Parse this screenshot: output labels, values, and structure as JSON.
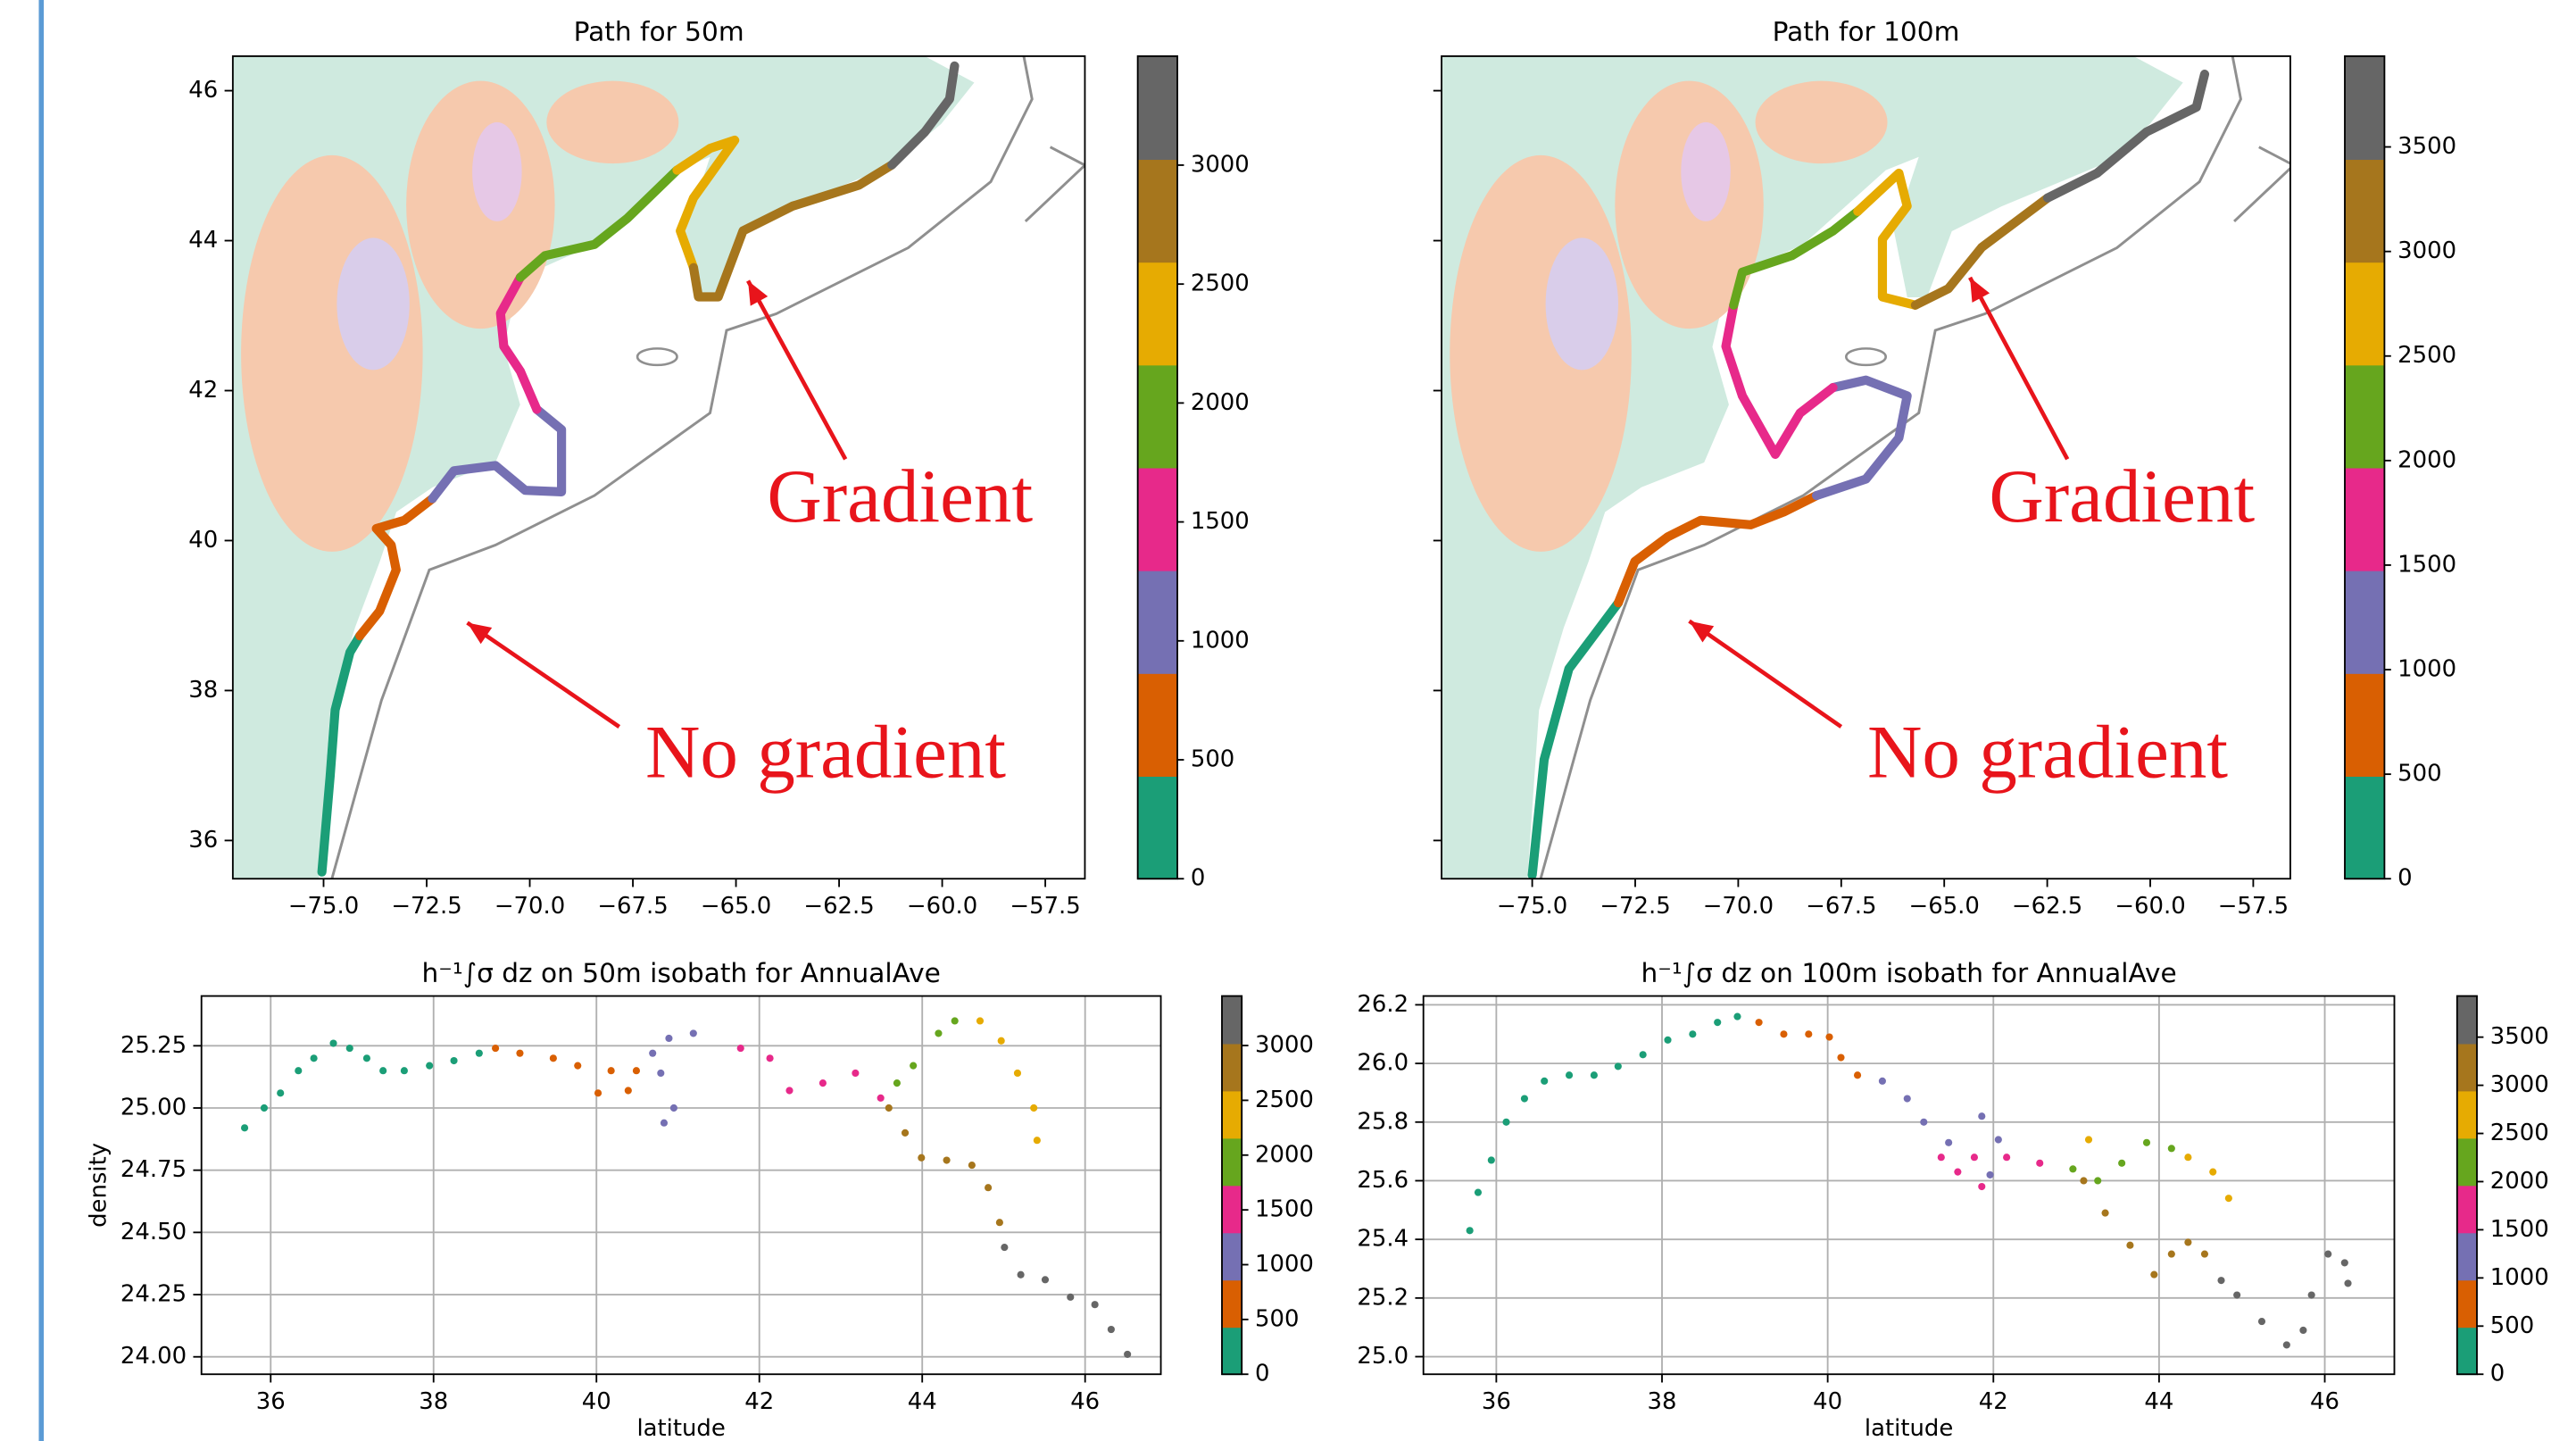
{
  "chart_data": [
    {
      "type": "line",
      "title": "Path for 50m",
      "xlim": [
        -77.2,
        -56.54
      ],
      "ylim": [
        35.49,
        46.46
      ],
      "xticks": [
        {
          "value": -75,
          "label": "−75.0"
        },
        {
          "value": -72.5,
          "label": "−72.5"
        },
        {
          "value": -70,
          "label": "−70.0"
        },
        {
          "value": -67.5,
          "label": "−67.5"
        },
        {
          "value": -65,
          "label": "−65.0"
        },
        {
          "value": -62.5,
          "label": "−62.5"
        },
        {
          "value": -60,
          "label": "−60.0"
        },
        {
          "value": -57.5,
          "label": "−57.5"
        }
      ],
      "yticks": [
        36,
        38,
        40,
        42,
        44,
        46
      ],
      "series": [
        {
          "color": "#1b9e77",
          "x": [
            -75.04,
            -74.84,
            -74.72,
            -74.36,
            -74.12
          ],
          "values": [
            35.58,
            36.86,
            37.74,
            38.51,
            38.73
          ]
        },
        {
          "color": "#d95f02",
          "x": [
            -74.12,
            -73.64,
            -73.24,
            -73.36,
            -73.72,
            -73.04,
            -72.36
          ],
          "values": [
            38.73,
            39.06,
            39.61,
            39.94,
            40.16,
            40.27,
            40.56
          ]
        },
        {
          "color": "#7570b3",
          "x": [
            -72.36,
            -71.84,
            -70.83,
            -70.11,
            -69.23,
            -69.23,
            -69.83
          ],
          "values": [
            40.56,
            40.93,
            41.0,
            40.67,
            40.65,
            41.48,
            41.75
          ]
        },
        {
          "color": "#e7298a",
          "x": [
            -69.83,
            -70.23,
            -70.63,
            -70.71,
            -70.23
          ],
          "values": [
            41.75,
            42.26,
            42.59,
            43.03,
            43.51
          ]
        },
        {
          "color": "#66a61e",
          "x": [
            -70.23,
            -69.63,
            -68.43,
            -67.63,
            -66.43
          ],
          "values": [
            43.51,
            43.8,
            43.95,
            44.3,
            44.94
          ]
        },
        {
          "color": "#e6ab02",
          "x": [
            -66.43,
            -65.63,
            -65.03,
            -66.03,
            -66.35,
            -66.03
          ],
          "values": [
            44.94,
            45.23,
            45.34,
            44.57,
            44.13,
            43.64
          ]
        },
        {
          "color": "#a6761d",
          "x": [
            -66.03,
            -65.91,
            -65.43,
            -64.83,
            -63.63,
            -62.02,
            -61.22
          ],
          "values": [
            43.64,
            43.25,
            43.25,
            44.13,
            44.46,
            44.74,
            45.01
          ]
        },
        {
          "color": "#666666",
          "x": [
            -61.22,
            -60.42,
            -59.82,
            -59.7
          ],
          "values": [
            45.01,
            45.45,
            45.89,
            46.33
          ]
        }
      ],
      "colorbar": {
        "lim": [
          0,
          3458
        ],
        "ticks": [
          0,
          500,
          1000,
          1500,
          2000,
          2500,
          3000
        ],
        "colors": [
          "#1b9e77",
          "#d95f02",
          "#7570b3",
          "#e7298a",
          "#66a61e",
          "#e6ab02",
          "#a6761d",
          "#666666"
        ]
      },
      "annotations": [
        "Gradient",
        "No gradient"
      ]
    },
    {
      "type": "line",
      "title": "Path for 100m",
      "xlim": [
        -77.2,
        -56.6
      ],
      "ylim": [
        35.49,
        46.46
      ],
      "xticks": [
        {
          "value": -75,
          "label": "−75.0"
        },
        {
          "value": -72.5,
          "label": "−72.5"
        },
        {
          "value": -70,
          "label": "−70.0"
        },
        {
          "value": -67.5,
          "label": "−67.5"
        },
        {
          "value": -65,
          "label": "−65.0"
        },
        {
          "value": -62.5,
          "label": "−62.5"
        },
        {
          "value": -60,
          "label": "−60.0"
        },
        {
          "value": -57.5,
          "label": "−57.5"
        }
      ],
      "yticks": [
        36,
        38,
        40,
        42,
        44,
        46
      ],
      "ytick_labels": false,
      "series": [
        {
          "color": "#1b9e77",
          "x": [
            -75.0,
            -74.71,
            -74.11,
            -73.51,
            -72.91
          ],
          "values": [
            35.54,
            37.08,
            38.29,
            38.73,
            39.17
          ]
        },
        {
          "color": "#d95f02",
          "x": [
            -72.91,
            -72.51,
            -71.71,
            -70.91,
            -69.7,
            -68.9,
            -68.1
          ],
          "values": [
            39.17,
            39.72,
            40.05,
            40.27,
            40.21,
            40.38,
            40.6
          ]
        },
        {
          "color": "#7570b3",
          "x": [
            -68.1,
            -66.9,
            -66.1,
            -65.9,
            -66.9,
            -67.7
          ],
          "values": [
            40.6,
            40.82,
            41.37,
            41.93,
            42.14,
            42.04
          ]
        },
        {
          "color": "#e7298a",
          "x": [
            -67.7,
            -68.5,
            -69.1,
            -69.9,
            -70.3,
            -70.11
          ],
          "values": [
            42.04,
            41.7,
            41.15,
            41.93,
            42.59,
            43.14
          ]
        },
        {
          "color": "#66a61e",
          "x": [
            -70.11,
            -69.9,
            -68.7,
            -67.7,
            -67.1
          ],
          "values": [
            43.14,
            43.58,
            43.8,
            44.13,
            44.39
          ]
        },
        {
          "color": "#e6ab02",
          "x": [
            -67.1,
            -66.1,
            -65.9,
            -66.5,
            -66.5,
            -65.7
          ],
          "values": [
            44.39,
            44.9,
            44.46,
            44.02,
            43.25,
            43.14
          ]
        },
        {
          "color": "#a6761d",
          "x": [
            -65.7,
            -64.9,
            -64.09,
            -62.49
          ],
          "values": [
            43.14,
            43.36,
            43.91,
            44.57
          ]
        },
        {
          "color": "#666666",
          "x": [
            -62.49,
            -61.29,
            -60.09,
            -58.88,
            -58.68
          ],
          "values": [
            44.57,
            44.9,
            45.45,
            45.78,
            46.22
          ]
        }
      ],
      "colorbar": {
        "lim": [
          0,
          3934
        ],
        "ticks": [
          0,
          500,
          1000,
          1500,
          2000,
          2500,
          3000,
          3500
        ],
        "colors": [
          "#1b9e77",
          "#d95f02",
          "#7570b3",
          "#e7298a",
          "#66a61e",
          "#e6ab02",
          "#a6761d",
          "#666666"
        ]
      },
      "annotations": [
        "Gradient",
        "No gradient"
      ]
    },
    {
      "type": "scatter",
      "title": "h⁻¹∫σ dz on 50m isobath for AnnualAve",
      "xlabel": "latitude",
      "ylabel": "density",
      "grid": true,
      "xlim": [
        35.15,
        46.93
      ],
      "ylim": [
        23.93,
        25.45
      ],
      "xticks": [
        36,
        38,
        40,
        42,
        44,
        46
      ],
      "yticks": [
        {
          "value": 24,
          "label": "24.00"
        },
        24.25,
        {
          "value": 24.5,
          "label": "24.50"
        },
        24.75,
        {
          "value": 25,
          "label": "25.00"
        },
        25.25
      ],
      "series": [
        {
          "color": "#1b9e77",
          "x": [
            35.68,
            35.92,
            36.12,
            36.34,
            36.53,
            36.77,
            36.97,
            37.18,
            37.38,
            37.64,
            37.95,
            38.25,
            38.56
          ],
          "values": [
            24.92,
            25.0,
            25.06,
            25.15,
            25.2,
            25.26,
            25.24,
            25.2,
            25.15,
            25.15,
            25.17,
            25.19,
            25.22
          ]
        },
        {
          "color": "#d95f02",
          "x": [
            38.76,
            39.06,
            39.47,
            39.77,
            40.02,
            40.18,
            40.39,
            40.49
          ],
          "values": [
            25.24,
            25.22,
            25.2,
            25.17,
            25.06,
            25.15,
            25.07,
            25.15
          ]
        },
        {
          "color": "#7570b3",
          "x": [
            40.69,
            40.89,
            41.19,
            40.79,
            40.95,
            40.83
          ],
          "values": [
            25.22,
            25.28,
            25.3,
            25.14,
            25.0,
            24.94
          ]
        },
        {
          "color": "#e7298a",
          "x": [
            41.77,
            42.13,
            42.37,
            42.78,
            43.18,
            43.49
          ],
          "values": [
            25.24,
            25.2,
            25.07,
            25.1,
            25.14,
            25.04
          ]
        },
        {
          "color": "#66a61e",
          "x": [
            43.69,
            43.89,
            44.2,
            44.4
          ],
          "values": [
            25.1,
            25.17,
            25.3,
            25.35
          ]
        },
        {
          "color": "#e6ab02",
          "x": [
            44.71,
            44.97,
            45.17,
            45.37,
            45.41
          ],
          "values": [
            25.35,
            25.27,
            25.14,
            25.0,
            24.87
          ]
        },
        {
          "color": "#a6761d",
          "x": [
            43.59,
            43.79,
            43.99,
            44.3,
            44.61,
            44.81,
            44.95
          ],
          "values": [
            25.0,
            24.9,
            24.8,
            24.79,
            24.77,
            24.68,
            24.54
          ]
        },
        {
          "color": "#666666",
          "x": [
            45.01,
            45.21,
            45.51,
            45.82,
            46.12,
            46.32,
            46.52
          ],
          "values": [
            24.44,
            24.33,
            24.31,
            24.24,
            24.21,
            24.11,
            24.01
          ]
        }
      ],
      "colorbar": {
        "lim": [
          0,
          3452
        ],
        "ticks": [
          0,
          500,
          1000,
          1500,
          2000,
          2500,
          3000
        ],
        "colors": [
          "#1b9e77",
          "#d95f02",
          "#7570b3",
          "#e7298a",
          "#66a61e",
          "#e6ab02",
          "#a6761d",
          "#666666"
        ]
      }
    },
    {
      "type": "scatter",
      "title": "h⁻¹∫σ dz on 100m isobath for AnnualAve",
      "xlabel": "latitude",
      "grid": true,
      "xlim": [
        35.12,
        46.84
      ],
      "ylim": [
        24.94,
        26.23
      ],
      "xticks": [
        36,
        38,
        40,
        42,
        44,
        46
      ],
      "yticks": [
        {
          "value": 25,
          "label": "25.0"
        },
        25.2,
        25.4,
        25.6,
        25.8,
        {
          "value": 26,
          "label": "26.0"
        },
        26.2
      ],
      "series": [
        {
          "color": "#1b9e77",
          "x": [
            35.68,
            35.78,
            35.94,
            36.12,
            36.34,
            36.58,
            36.88,
            37.18,
            37.47,
            37.77,
            38.07,
            38.37,
            38.67,
            38.91
          ],
          "values": [
            25.43,
            25.56,
            25.67,
            25.8,
            25.88,
            25.94,
            25.96,
            25.96,
            25.99,
            26.03,
            26.08,
            26.1,
            26.14,
            26.16
          ]
        },
        {
          "color": "#d95f02",
          "x": [
            39.17,
            39.47,
            39.77,
            40.02,
            40.16,
            40.36
          ],
          "values": [
            26.14,
            26.1,
            26.1,
            26.09,
            26.02,
            25.96
          ]
        },
        {
          "color": "#7570b3",
          "x": [
            40.66,
            40.96,
            41.16,
            41.46,
            41.86,
            42.06,
            41.96
          ],
          "values": [
            25.94,
            25.88,
            25.8,
            25.73,
            25.82,
            25.74,
            25.62
          ]
        },
        {
          "color": "#e7298a",
          "x": [
            41.37,
            41.77,
            42.16,
            42.56,
            41.57,
            41.86
          ],
          "values": [
            25.68,
            25.68,
            25.68,
            25.66,
            25.63,
            25.58
          ]
        },
        {
          "color": "#66a61e",
          "x": [
            42.96,
            43.26,
            43.55,
            43.85,
            44.15
          ],
          "values": [
            25.64,
            25.6,
            25.66,
            25.73,
            25.71
          ]
        },
        {
          "color": "#e6ab02",
          "x": [
            43.15,
            44.35,
            44.65,
            44.84
          ],
          "values": [
            25.74,
            25.68,
            25.63,
            25.54
          ]
        },
        {
          "color": "#a6761d",
          "x": [
            43.09,
            43.35,
            43.65,
            43.94,
            44.15,
            44.35,
            44.55
          ],
          "values": [
            25.6,
            25.49,
            25.38,
            25.28,
            25.35,
            25.39,
            25.35
          ]
        },
        {
          "color": "#666666",
          "x": [
            44.75,
            44.94,
            45.24,
            45.54,
            45.74,
            45.84,
            46.04,
            46.24,
            46.28
          ],
          "values": [
            25.26,
            25.21,
            25.12,
            25.04,
            25.09,
            25.21,
            25.35,
            25.32,
            25.25
          ]
        }
      ],
      "colorbar": {
        "lim": [
          0,
          3927
        ],
        "ticks": [
          0,
          500,
          1000,
          1500,
          2000,
          2500,
          3000,
          3500
        ],
        "colors": [
          "#1b9e77",
          "#d95f02",
          "#7570b3",
          "#e7298a",
          "#66a61e",
          "#e6ab02",
          "#a6761d",
          "#666666"
        ]
      }
    }
  ]
}
